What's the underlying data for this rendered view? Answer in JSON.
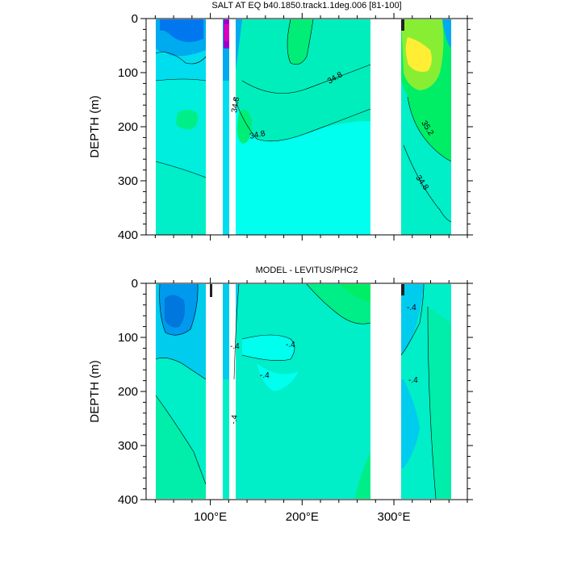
{
  "chart_data": [
    {
      "type": "contour",
      "title": "SALT AT EQ b40.1850.track1.1deg.006 [81-100]",
      "ylabel": "DEPTH (m)",
      "xlabel": "",
      "xlim": [
        30,
        380
      ],
      "ylim": [
        400,
        0
      ],
      "y_ticks": [
        "0",
        "100",
        "200",
        "300",
        "400"
      ],
      "y_tick_values": [
        0,
        100,
        200,
        300,
        400
      ],
      "x_tick_labels": [
        "100°E",
        "200°E",
        "300°E"
      ],
      "x_tick_values": [
        100,
        200,
        300
      ],
      "contour_labels": [
        "34.8",
        "34.8",
        "34.8",
        "35.2",
        "34.8"
      ],
      "colors": {
        "low": "#0055ee",
        "mid": "#00eedd",
        "high": "#ffee33"
      }
    },
    {
      "type": "contour",
      "title": "MODEL - LEVITUS/PHC2",
      "ylabel": "DEPTH (m)",
      "xlabel": "",
      "xlim": [
        30,
        380
      ],
      "ylim": [
        400,
        0
      ],
      "y_ticks": [
        "0",
        "100",
        "200",
        "300",
        "400"
      ],
      "y_tick_values": [
        0,
        100,
        200,
        300,
        400
      ],
      "x_tick_labels": [
        "100°E",
        "200°E",
        "300°E"
      ],
      "x_tick_values": [
        100,
        200,
        300
      ],
      "contour_labels": [
        "-.4",
        "-.4",
        "-.4",
        "-.4",
        "-.4",
        "-.4"
      ],
      "colors": {
        "low": "#0077ee",
        "mid": "#00ffee",
        "high": "#00ee66"
      }
    }
  ]
}
